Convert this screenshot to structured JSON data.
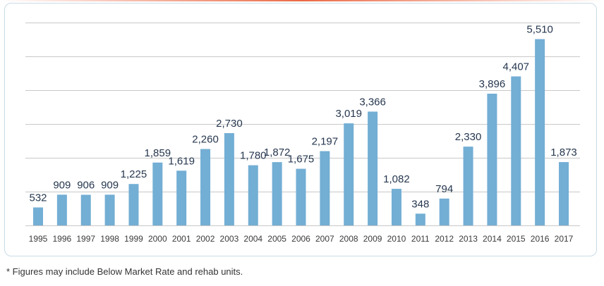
{
  "colors": {
    "bar": "#73aed4",
    "grid": "#c8c8c8",
    "label": "#26374f",
    "tick": "#3a3a3a",
    "accent": "#e85a32"
  },
  "footnote": "* Figures may include Below Market Rate and rehab units.",
  "chart_data": {
    "type": "bar",
    "title": "",
    "xlabel": "",
    "ylabel": "",
    "ylim": [
      0,
      6000
    ],
    "grid": true,
    "categories": [
      "1995",
      "1996",
      "1997",
      "1998",
      "1999",
      "2000",
      "2001",
      "2002",
      "2003",
      "2004",
      "2005",
      "2006",
      "2007",
      "2008",
      "2009",
      "2010",
      "2011",
      "2012",
      "2013",
      "2014",
      "2015",
      "2016",
      "2017"
    ],
    "values": [
      532,
      909,
      906,
      909,
      1225,
      1859,
      1619,
      2260,
      2730,
      1780,
      1872,
      1675,
      2197,
      3019,
      3366,
      1082,
      348,
      794,
      2330,
      3896,
      4407,
      5510,
      1873
    ],
    "value_labels": [
      "532",
      "909",
      "906",
      "909",
      "1,225",
      "1,859",
      "1,619",
      "2,260",
      "2,730",
      "1,780",
      "1,872",
      "1,675",
      "2,197",
      "3,019",
      "3,366",
      "1,082",
      "348",
      "794",
      "2,330",
      "3,896",
      "4,407",
      "5,510",
      "1,873"
    ]
  }
}
